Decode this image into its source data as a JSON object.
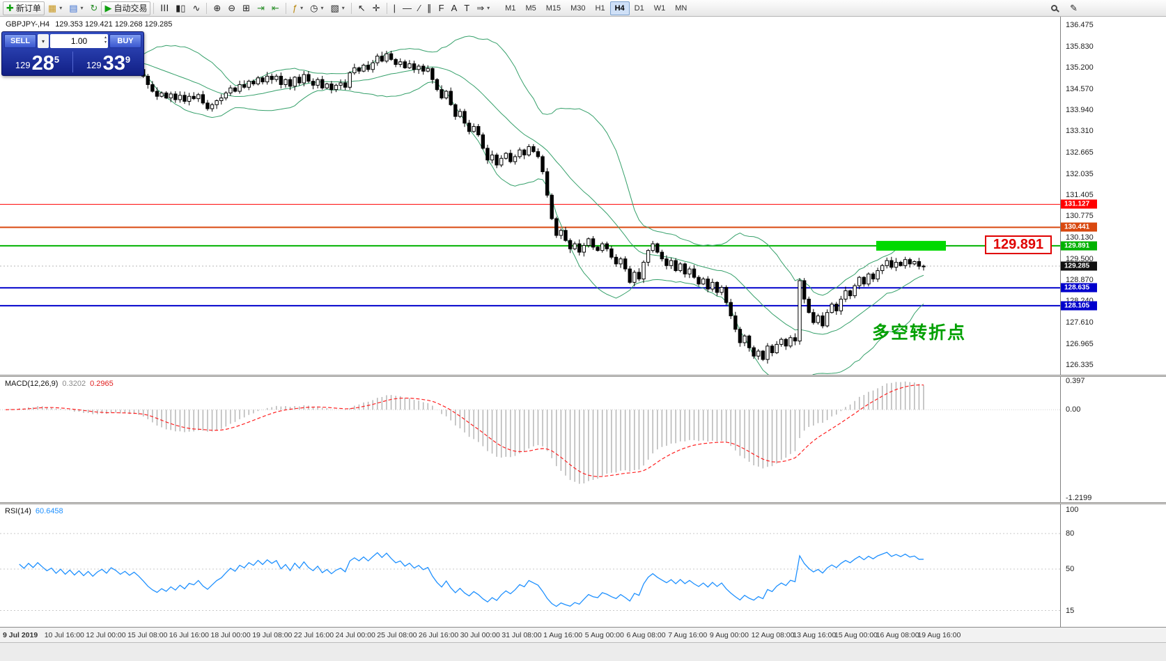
{
  "icons": {
    "chevron_down": "▾",
    "spin_up": "▴",
    "spin_down": "▾"
  },
  "title": {
    "symbol_period": "GBPJPY-,H4",
    "ohlc": "129.353 129.421 129.268 129.285"
  },
  "toolbar": {
    "items": [
      {
        "name": "new-order-button",
        "icon": "new-order-icon",
        "glyph": "✚",
        "glyph_color": "#0fa00f",
        "label": "新订单"
      },
      {
        "name": "new-chart-button",
        "icon": "new-chart-icon",
        "glyph": "▦",
        "glyph_color": "#c8971e",
        "dropdown": true
      },
      {
        "name": "profiles-button",
        "icon": "profiles-icon",
        "glyph": "▤",
        "glyph_color": "#3b6fd0",
        "dropdown": true
      },
      {
        "name": "refresh-button",
        "icon": "refresh-icon",
        "glyph": "↻",
        "glyph_color": "#2a8f2a"
      },
      {
        "name": "autotrading-button",
        "icon": "play-icon",
        "glyph": "▶",
        "glyph_color": "#0fa00f",
        "label": "自动交易"
      },
      {
        "sep": true
      },
      {
        "name": "bar-chart-button",
        "icon": "bar-chart-icon",
        "glyph": "☰",
        "rot": true
      },
      {
        "name": "candlestick-button",
        "icon": "candlestick-icon",
        "glyph": "▮▯"
      },
      {
        "name": "line-chart-button",
        "icon": "line-chart-icon",
        "glyph": "∿"
      },
      {
        "sep": true
      },
      {
        "name": "zoom-in-button",
        "icon": "zoom-in-icon",
        "glyph": "⊕"
      },
      {
        "name": "zoom-out-button",
        "icon": "zoom-out-icon",
        "glyph": "⊖"
      },
      {
        "name": "tile-windows-button",
        "icon": "tile-windows-icon",
        "glyph": "⊞"
      },
      {
        "name": "auto-scroll-button",
        "icon": "auto-scroll-icon",
        "glyph": "⇥",
        "glyph_color": "#2a8f2a"
      },
      {
        "name": "chart-shift-button",
        "icon": "chart-shift-icon",
        "glyph": "⇤",
        "glyph_color": "#2a8f2a"
      },
      {
        "sep": true
      },
      {
        "name": "indicators-button",
        "icon": "indicators-icon",
        "glyph": "ƒ",
        "glyph_color": "#b8860b",
        "dropdown": true
      },
      {
        "name": "periods-button",
        "icon": "clock-icon",
        "glyph": "◷",
        "dropdown": true
      },
      {
        "name": "templates-button",
        "icon": "template-icon",
        "glyph": "▧",
        "dropdown": true
      },
      {
        "sep": true
      },
      {
        "name": "cursor-button",
        "icon": "cursor-icon",
        "glyph": "↖"
      },
      {
        "name": "crosshair-button",
        "icon": "crosshair-icon",
        "glyph": "✛"
      },
      {
        "sep": true
      },
      {
        "name": "vertical-line-button",
        "icon": "vertical-line-icon",
        "glyph": "|"
      },
      {
        "name": "horizontal-line-button",
        "icon": "horizontal-line-icon",
        "glyph": "—"
      },
      {
        "name": "trendline-button",
        "icon": "trendline-icon",
        "glyph": "∕"
      },
      {
        "name": "channel-button",
        "icon": "channel-icon",
        "glyph": "∥"
      },
      {
        "name": "fibonacci-button",
        "icon": "fibonacci-icon",
        "glyph": "F"
      },
      {
        "name": "text-button",
        "icon": "text-icon",
        "glyph": "A"
      },
      {
        "name": "label-button",
        "icon": "label-icon",
        "glyph": "T"
      },
      {
        "name": "arrows-button",
        "icon": "arrow-tool-icon",
        "glyph": "⇒",
        "dropdown": true
      }
    ],
    "timeframes": {
      "options": [
        "M1",
        "M5",
        "M15",
        "M30",
        "H1",
        "H4",
        "D1",
        "W1",
        "MN"
      ],
      "active": "H4"
    },
    "right_items": [
      {
        "name": "search-button",
        "icon": "magnifier-icon",
        "lens": true
      },
      {
        "name": "quick-edit-button",
        "icon": "pencil-icon",
        "glyph": "✎"
      }
    ]
  },
  "trade_panel": {
    "sell_label": "SELL",
    "buy_label": "BUY",
    "lot_value": "1.00",
    "sell_price": {
      "prefix": "129",
      "big": "28",
      "sup": "5"
    },
    "buy_price": {
      "prefix": "129",
      "big": "33",
      "sup": "9"
    }
  },
  "chart_data": {
    "type": "candlestick",
    "symbol": "GBPJPY",
    "timeframe": "H4",
    "title": "GBPJPY-,H4",
    "ohlc_current": {
      "open": "129.353",
      "high": "129.421",
      "low": "129.268",
      "close": "129.285"
    },
    "ylim": [
      126.335,
      136.475
    ],
    "closes": [
      135.5,
      135.65,
      135.45,
      135.7,
      135.55,
      135.75,
      135.6,
      135.8,
      135.65,
      135.5,
      135.6,
      135.4,
      135.55,
      135.35,
      135.5,
      135.3,
      135.45,
      135.25,
      135.4,
      135.2,
      135.35,
      135.45,
      135.3,
      135.5,
      135.4,
      135.25,
      135.35,
      135.2,
      135.3,
      135.15,
      134.95,
      134.7,
      134.5,
      134.35,
      134.45,
      134.3,
      134.42,
      134.25,
      134.38,
      134.2,
      134.35,
      134.28,
      134.4,
      134.15,
      133.98,
      134.1,
      134.22,
      134.3,
      134.45,
      134.6,
      134.5,
      134.7,
      134.62,
      134.8,
      134.72,
      134.9,
      134.78,
      134.95,
      134.85,
      134.95,
      134.7,
      134.85,
      134.65,
      134.92,
      134.75,
      135.0,
      134.8,
      134.68,
      134.85,
      134.6,
      134.72,
      134.55,
      134.68,
      134.75,
      134.62,
      135.05,
      135.2,
      135.1,
      135.28,
      135.15,
      135.35,
      135.55,
      135.4,
      135.62,
      135.45,
      135.3,
      135.38,
      135.2,
      135.32,
      135.15,
      135.25,
      135.1,
      135.18,
      134.85,
      134.55,
      134.3,
      134.5,
      134.1,
      133.75,
      133.9,
      133.55,
      133.3,
      133.45,
      133.2,
      132.8,
      132.45,
      132.6,
      132.3,
      132.5,
      132.65,
      132.4,
      132.55,
      132.75,
      132.6,
      132.85,
      132.7,
      132.55,
      132.1,
      131.4,
      130.7,
      130.2,
      130.35,
      130.05,
      129.8,
      129.95,
      129.7,
      129.9,
      130.1,
      129.85,
      129.75,
      129.95,
      129.8,
      129.55,
      129.35,
      129.5,
      129.2,
      128.8,
      129.1,
      128.9,
      129.4,
      129.75,
      129.95,
      129.7,
      129.5,
      129.3,
      129.45,
      129.15,
      129.35,
      129.05,
      129.2,
      128.95,
      128.75,
      128.9,
      128.6,
      128.8,
      128.5,
      128.65,
      128.2,
      127.8,
      127.4,
      127.0,
      127.2,
      126.85,
      126.6,
      126.75,
      126.5,
      126.9,
      126.7,
      126.95,
      127.1,
      126.9,
      127.15,
      127.05,
      128.85,
      128.3,
      127.9,
      127.6,
      127.8,
      127.5,
      127.9,
      128.15,
      127.95,
      128.3,
      128.55,
      128.4,
      128.7,
      128.95,
      128.75,
      129.05,
      128.9,
      129.15,
      129.3,
      129.45,
      129.25,
      129.4,
      129.3,
      129.48,
      129.35,
      129.42,
      129.28,
      129.285
    ],
    "note": "closes approximate the depicted H4 path; opens derived as previous close",
    "bollinger": {
      "period": 20,
      "deviation": 2,
      "color": "#35a06a"
    },
    "hlines": [
      {
        "price": 131.127,
        "label": "131.127",
        "color": "#ff0000",
        "width": 1
      },
      {
        "price": 130.441,
        "label": "130.441",
        "color": "#d9480f",
        "width": 2
      },
      {
        "price": 129.891,
        "label": "129.891",
        "color": "#00b200",
        "width": 2
      },
      {
        "price": 128.635,
        "label": "128.635",
        "color": "#0000cc",
        "width": 2
      },
      {
        "price": 128.105,
        "label": "128.105",
        "color": "#0000cc",
        "width": 2
      }
    ],
    "bid": {
      "price": 129.285,
      "label": "129.285",
      "label_bg": "#111111"
    },
    "highlight_rect": {
      "price": 129.891,
      "color": "#00d900"
    },
    "callout": {
      "text": "129.891",
      "color": "#e00000"
    },
    "annotation": {
      "text": "多空转折点",
      "color": "#00a000"
    },
    "scale_ticks": [
      "136.475",
      "135.830",
      "135.200",
      "134.570",
      "133.940",
      "133.310",
      "132.665",
      "132.035",
      "131.405",
      "130.775",
      "130.130",
      "129.500",
      "128.870",
      "128.240",
      "127.610",
      "126.965",
      "126.335"
    ],
    "macd": {
      "label": "MACD(12,26,9)",
      "value1": "0.3202",
      "value2": "0.2965",
      "fast": 12,
      "slow": 26,
      "signal": 9,
      "scale": {
        "top": "0.397",
        "zero": "0.00",
        "bottom": "-1.2199"
      },
      "histogram_color": "#b6b6b6",
      "signal_color": "#ff2020"
    },
    "rsi": {
      "label": "RSI(14)",
      "value": "60.6458",
      "period": 14,
      "levels": [
        "100",
        "80",
        "50",
        "15"
      ],
      "color": "#1e90ff"
    },
    "time_labels": [
      "9 Jul 2019",
      "10 Jul 16:00",
      "12 Jul 00:00",
      "15 Jul 08:00",
      "16 Jul 16:00",
      "18 Jul 00:00",
      "19 Jul 08:00",
      "22 Jul 16:00",
      "24 Jul 00:00",
      "25 Jul 08:00",
      "26 Jul 16:00",
      "30 Jul 00:00",
      "31 Jul 08:00",
      "1 Aug 16:00",
      "5 Aug 00:00",
      "6 Aug 08:00",
      "7 Aug 16:00",
      "9 Aug 00:00",
      "12 Aug 08:00",
      "13 Aug 16:00",
      "15 Aug 00:00",
      "16 Aug 08:00",
      "19 Aug 16:00"
    ]
  }
}
